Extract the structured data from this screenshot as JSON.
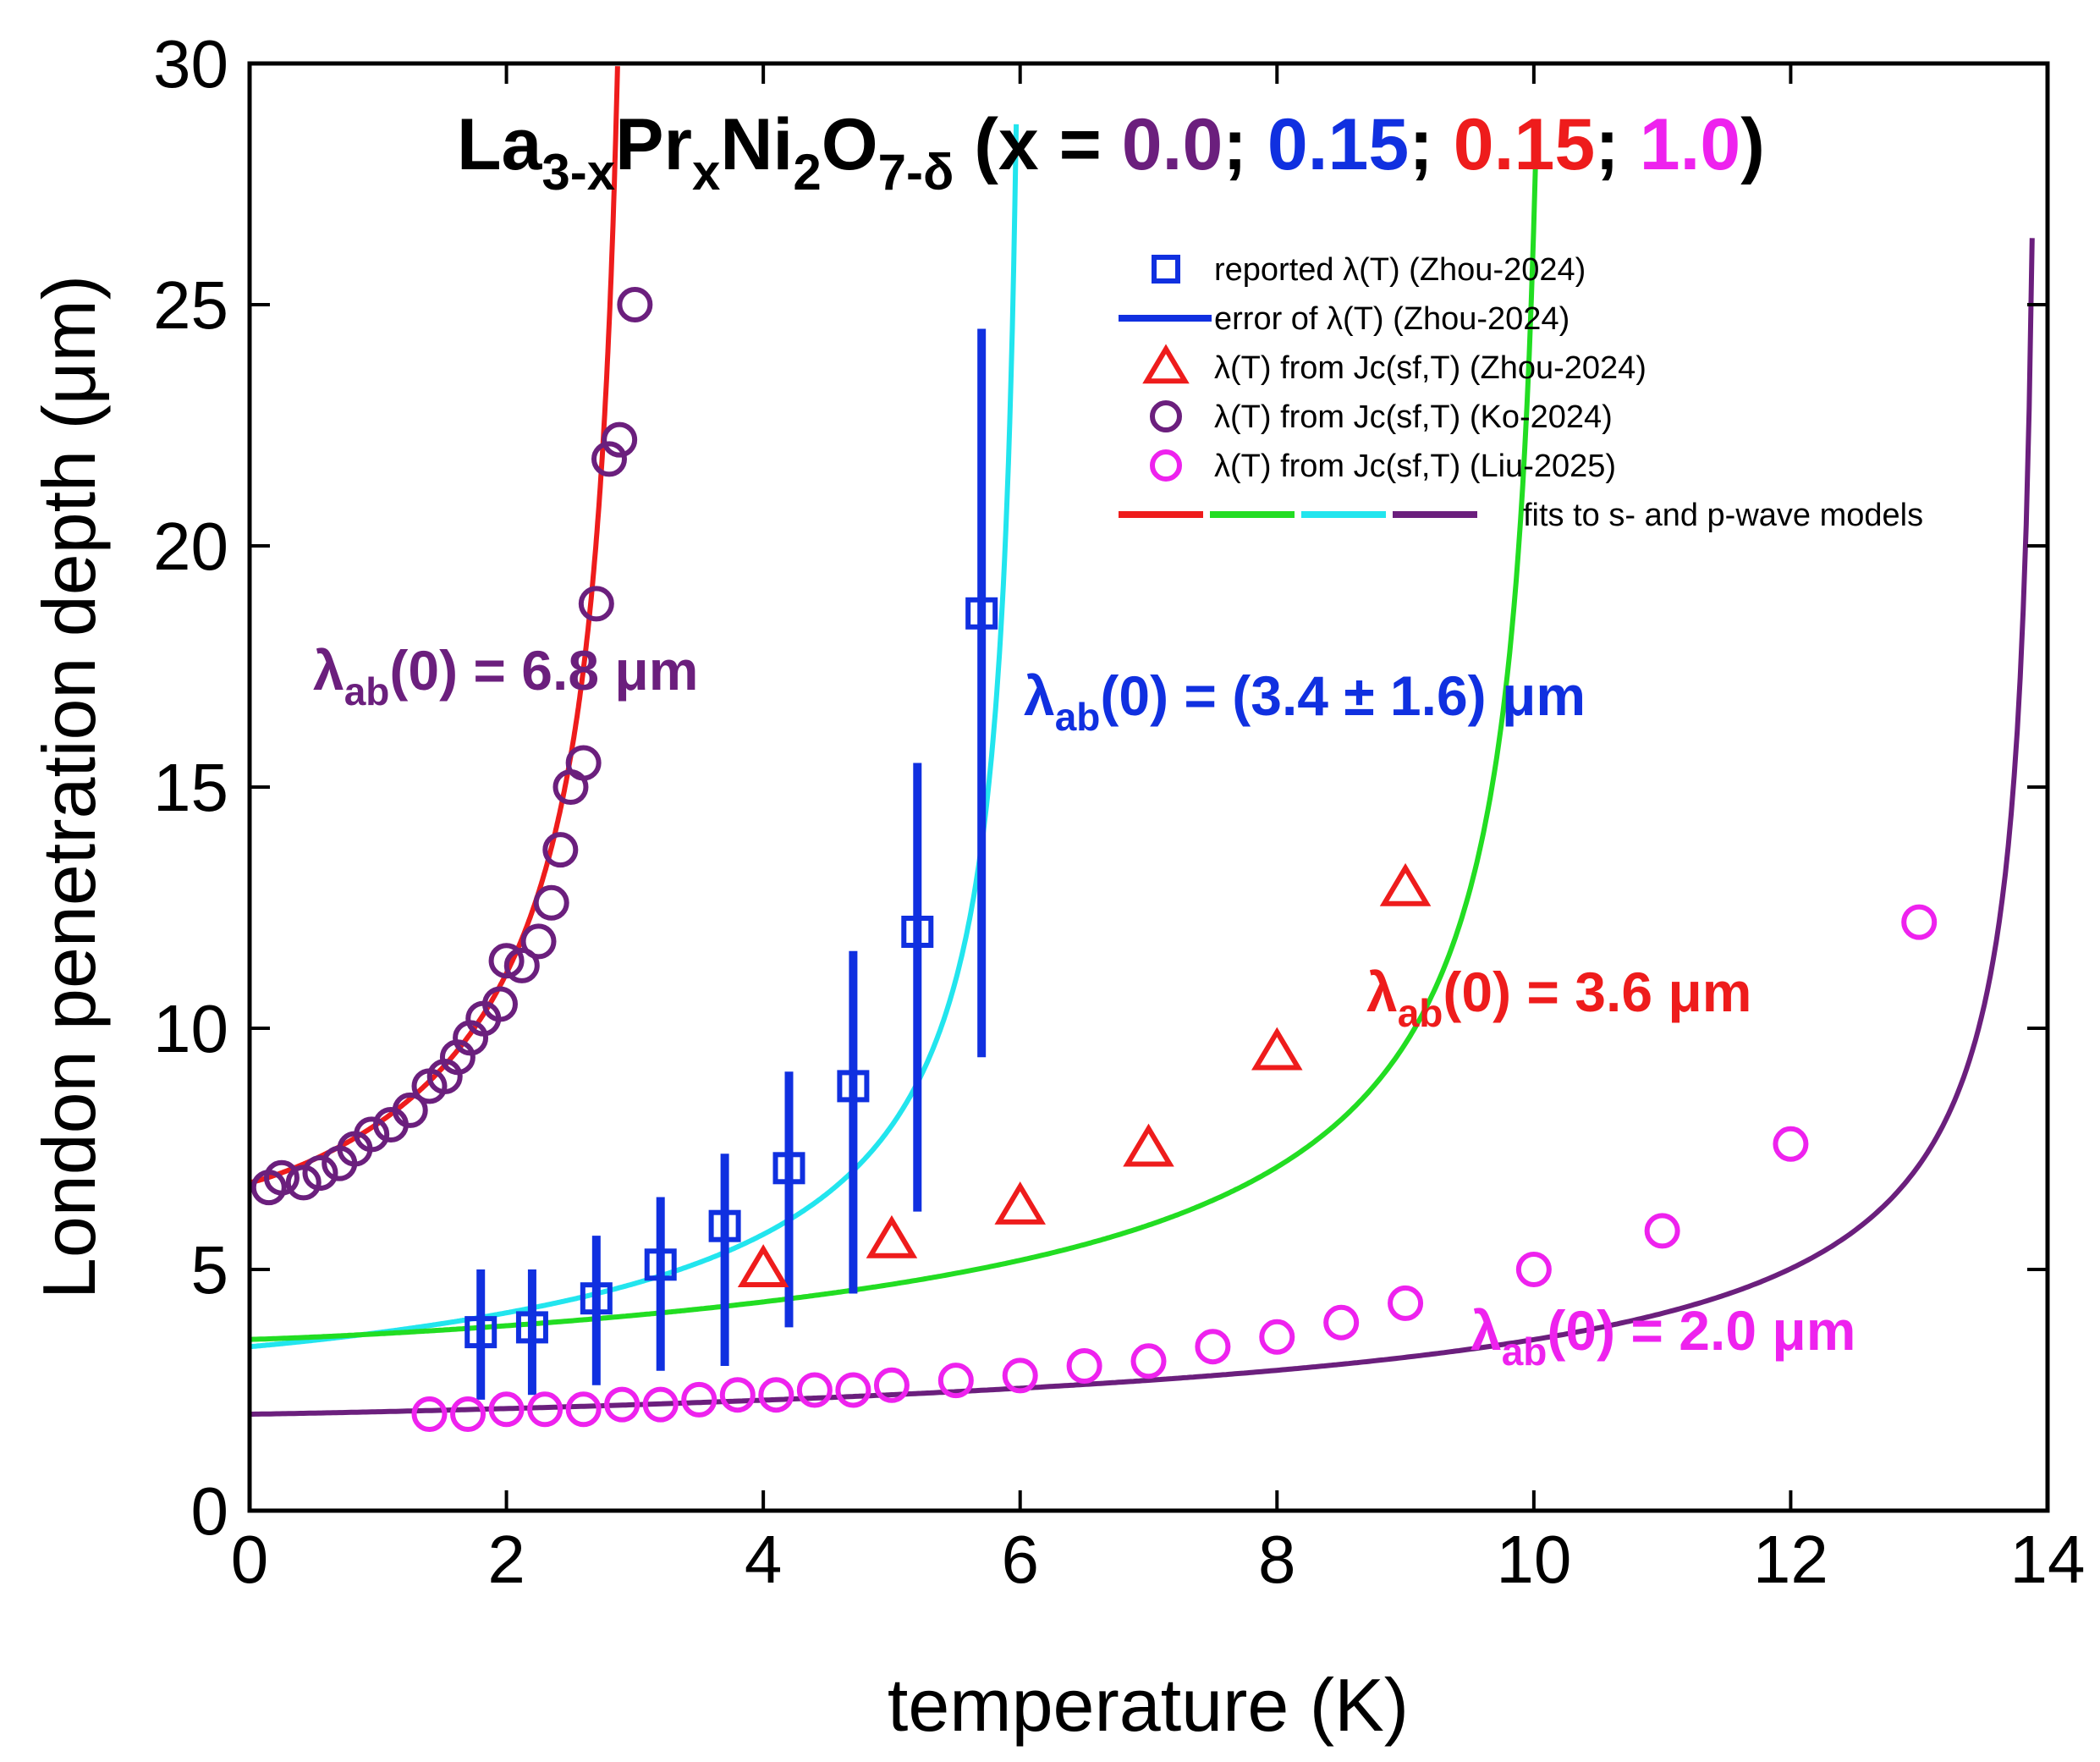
{
  "chart_data": {
    "type": "scatter",
    "title": {
      "segments": [
        {
          "text": "La",
          "color": "#000000",
          "shift": "base"
        },
        {
          "text": "3-x",
          "color": "#000000",
          "shift": "sub"
        },
        {
          "text": "Pr",
          "color": "#000000",
          "shift": "base"
        },
        {
          "text": "x",
          "color": "#000000",
          "shift": "sub"
        },
        {
          "text": "Ni",
          "color": "#000000",
          "shift": "base"
        },
        {
          "text": "2",
          "color": "#000000",
          "shift": "sub"
        },
        {
          "text": "O",
          "color": "#000000",
          "shift": "base"
        },
        {
          "text": "7-δ",
          "color": "#000000",
          "shift": "sub"
        },
        {
          "text": " (x = ",
          "color": "#000000",
          "shift": "base"
        },
        {
          "text": "0.0",
          "color": "#6b1f7d",
          "shift": "base"
        },
        {
          "text": "; ",
          "color": "#000000",
          "shift": "base"
        },
        {
          "text": "0.15",
          "color": "#1030e0",
          "shift": "base"
        },
        {
          "text": "; ",
          "color": "#000000",
          "shift": "base"
        },
        {
          "text": "0.15",
          "color": "#ee1c1c",
          "shift": "base"
        },
        {
          "text": "; ",
          "color": "#000000",
          "shift": "base"
        },
        {
          "text": "1.0",
          "color": "#ee22ee",
          "shift": "base"
        },
        {
          "text": ")",
          "color": "#000000",
          "shift": "base"
        }
      ]
    },
    "xlabel": "temperature (K)",
    "ylabel": "London penetration depth (μm)",
    "xlim": [
      0,
      14
    ],
    "ylim": [
      0,
      30
    ],
    "xticks": [
      "0",
      "2",
      "4",
      "6",
      "8",
      "10",
      "12",
      "14"
    ],
    "yticks": [
      "0",
      "5",
      "10",
      "15",
      "20",
      "25",
      "30"
    ],
    "colors": {
      "purple": "#6b1f7d",
      "blue": "#1030e0",
      "red": "#ee1c1c",
      "magenta": "#ee22ee",
      "green": "#22dd22",
      "cyan": "#22e5ee"
    },
    "series": [
      {
        "name": "reported λ(T) (Zhou-2024)",
        "marker": "square",
        "color": "#1030e0",
        "x": [
          1.8,
          2.2,
          2.7,
          3.2,
          3.7,
          4.2,
          4.7,
          5.2,
          5.7
        ],
        "y": [
          3.7,
          3.8,
          4.4,
          5.1,
          5.9,
          7.1,
          8.8,
          12.0,
          18.6
        ]
      },
      {
        "name": "error of λ(T) (Zhou-2024)",
        "marker": "errorbar",
        "color": "#1030e0",
        "x": [
          1.8,
          2.2,
          2.7,
          3.2,
          3.7,
          4.2,
          4.7,
          5.2,
          5.7
        ],
        "ylow": [
          2.3,
          2.4,
          2.6,
          2.9,
          3.0,
          3.8,
          4.5,
          6.2,
          9.4
        ],
        "yhigh": [
          5.0,
          5.0,
          5.7,
          6.5,
          7.4,
          9.1,
          11.6,
          15.5,
          24.5
        ]
      },
      {
        "name": "λ(T) from Jc(sf,T) (Zhou-2024)",
        "marker": "triangle",
        "color": "#ee1c1c",
        "x": [
          4.0,
          5.0,
          6.0,
          7.0,
          8.0,
          9.0
        ],
        "y": [
          5.0,
          5.6,
          6.3,
          7.5,
          9.5,
          12.9
        ]
      },
      {
        "name": "λ(T) from Jc(sf,T) (Ko-2024)",
        "marker": "circle",
        "color": "#6b1f7d",
        "x": [
          0.15,
          0.25,
          0.42,
          0.55,
          0.7,
          0.82,
          0.95,
          1.1,
          1.25,
          1.4,
          1.52,
          1.62,
          1.72,
          1.82,
          1.95,
          2.0,
          2.12,
          2.25,
          2.35,
          2.42,
          2.5,
          2.6,
          2.7,
          2.8,
          2.88,
          3.0
        ],
        "y": [
          6.7,
          6.9,
          6.8,
          7.0,
          7.2,
          7.5,
          7.8,
          8.0,
          8.3,
          8.8,
          9.0,
          9.4,
          9.8,
          10.2,
          10.5,
          11.4,
          11.3,
          11.8,
          12.6,
          13.7,
          15.0,
          15.5,
          18.8,
          21.8,
          22.2,
          25.0
        ]
      },
      {
        "name": "λ(T) from Jc(sf,T) (Liu-2025)",
        "marker": "circle",
        "color": "#ee22ee",
        "x": [
          1.4,
          1.7,
          2.0,
          2.3,
          2.6,
          2.9,
          3.2,
          3.5,
          3.8,
          4.1,
          4.4,
          4.7,
          5.0,
          5.5,
          6.0,
          6.5,
          7.0,
          7.5,
          8.0,
          8.5,
          9.0,
          10.0,
          11.0,
          12.0,
          13.0
        ],
        "y": [
          2.0,
          2.0,
          2.1,
          2.1,
          2.1,
          2.2,
          2.2,
          2.3,
          2.4,
          2.4,
          2.5,
          2.5,
          2.6,
          2.7,
          2.8,
          3.0,
          3.1,
          3.4,
          3.6,
          3.9,
          4.3,
          5.0,
          5.8,
          7.6,
          12.2
        ]
      }
    ],
    "fits": [
      {
        "name": "x = 0.0 fit",
        "color": "#ee1c1c",
        "lambda0": 6.8,
        "Tc": 3.0,
        "p": 1.15
      },
      {
        "name": "x = 0.15 error-bar fit",
        "color": "#22e5ee",
        "lambda0": 3.4,
        "Tc": 6.05,
        "p": 1.05
      },
      {
        "name": "x = 0.15 triangle fit",
        "color": "#22dd22",
        "lambda0": 3.55,
        "Tc": 10.15,
        "p": 1.2
      },
      {
        "name": "x = 1.0 fit",
        "color": "#6b1f7d",
        "lambda0": 2.0,
        "Tc": 13.95,
        "p": 1.15
      }
    ],
    "legend": {
      "position": "top-right",
      "entries": [
        {
          "label": "reported λ(T) (Zhou-2024)",
          "symbol": "square",
          "color": "#1030e0"
        },
        {
          "label": "error of λ(T) (Zhou-2024)",
          "symbol": "line",
          "color": "#1030e0"
        },
        {
          "label": "λ(T) from Jc(sf,T) (Zhou-2024)",
          "symbol": "triangle",
          "color": "#ee1c1c"
        },
        {
          "label": "λ(T) from Jc(sf,T) (Ko-2024)",
          "symbol": "circle",
          "color": "#6b1f7d"
        },
        {
          "label": "λ(T) from Jc(sf,T) (Liu-2025)",
          "symbol": "circle",
          "color": "#ee22ee"
        },
        {
          "label": "fits to s- and p-wave models",
          "symbol": "multiline",
          "color": "#6b1f7d"
        }
      ]
    },
    "annotations": [
      {
        "text": "λab(0) = 6.8 μm",
        "main": "λ",
        "sub": "ab",
        "rest": "(0) = 6.8 μm",
        "color": "#6b1f7d"
      },
      {
        "text": "λab(0) = (3.4 ± 1.6) μm",
        "main": "λ",
        "sub": "ab",
        "rest": "(0) = (3.4 ± 1.6) μm",
        "color": "#1030e0"
      },
      {
        "text": "λab(0) = 3.6 μm",
        "main": "λ",
        "sub": "ab",
        "rest": "(0) = 3.6 μm",
        "color": "#ee1c1c"
      },
      {
        "text": "λab(0) = 2.0 μm",
        "main": "λ",
        "sub": "ab",
        "rest": "(0) = 2.0 μm",
        "color": "#ee22ee"
      }
    ]
  }
}
